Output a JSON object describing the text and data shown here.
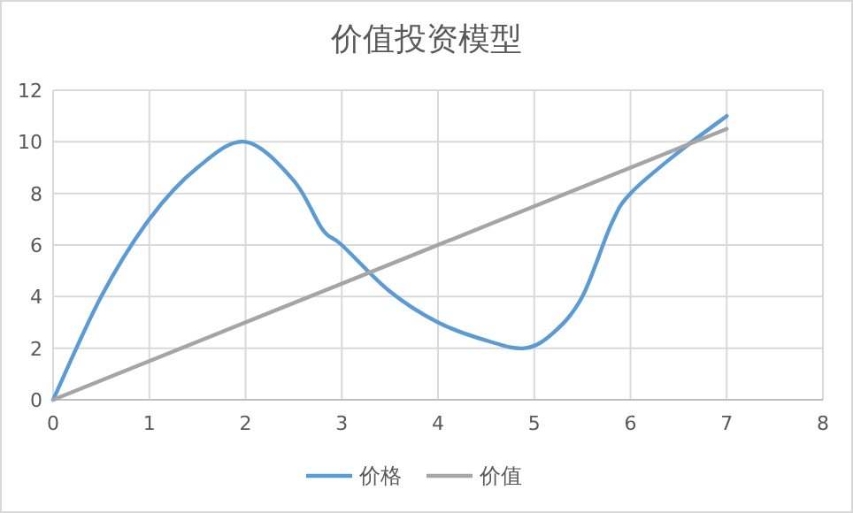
{
  "chart_data": {
    "type": "line",
    "title": "价值投资模型",
    "series": [
      {
        "name": "价格",
        "color": "#5b9bd5",
        "x": [
          0,
          0.5,
          1,
          1.5,
          2,
          2.5,
          2.8,
          3,
          3.5,
          4,
          4.5,
          4.9,
          5.2,
          5.5,
          5.8,
          6,
          6.5,
          7
        ],
        "values": [
          0,
          4,
          7,
          9,
          10,
          8.5,
          6.6,
          6,
          4.2,
          3,
          2.3,
          2,
          2.6,
          4,
          6.8,
          8,
          9.6,
          11
        ]
      },
      {
        "name": "价值",
        "color": "#a5a5a5",
        "x": [
          0,
          7
        ],
        "values": [
          0,
          10.5
        ]
      }
    ],
    "xlim": [
      0,
      8
    ],
    "ylim": [
      0,
      12
    ],
    "xticks": [
      0,
      1,
      2,
      3,
      4,
      5,
      6,
      7,
      8
    ],
    "yticks": [
      0,
      2,
      4,
      6,
      8,
      10,
      12
    ],
    "grid": true,
    "legend": "bottom",
    "marker": "none",
    "line_style": "solid"
  }
}
